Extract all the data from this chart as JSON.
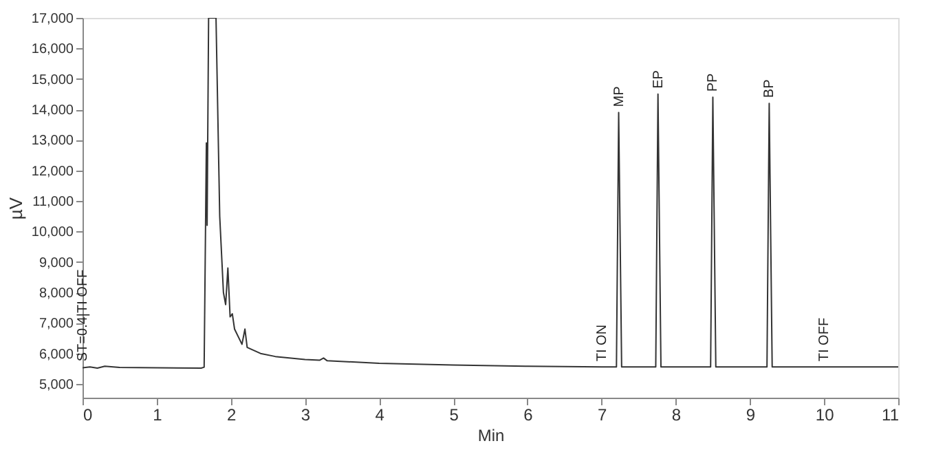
{
  "chart_data": {
    "type": "line",
    "xlabel": "Min",
    "ylabel": "µV",
    "xlim": [
      0,
      11
    ],
    "xticks": [
      0,
      1,
      2,
      3,
      4,
      5,
      6,
      7,
      8,
      9,
      10,
      11
    ],
    "ylim": [
      4550,
      17000
    ],
    "yticks": [
      {
        "value": 5000,
        "label": "5,000"
      },
      {
        "value": 6000,
        "label": "6,000"
      },
      {
        "value": 7000,
        "label": "7,000"
      },
      {
        "value": 8000,
        "label": "8,000"
      },
      {
        "value": 9000,
        "label": "9,000"
      },
      {
        "value": 10000,
        "label": "10,000"
      },
      {
        "value": 11000,
        "label": "11,000"
      },
      {
        "value": 12000,
        "label": "12,000"
      },
      {
        "value": 13000,
        "label": "13,000"
      },
      {
        "value": 14000,
        "label": "14,000"
      },
      {
        "value": 15000,
        "label": "15,000"
      },
      {
        "value": 16000,
        "label": "16,000"
      },
      {
        "value": 17000,
        "label": "17,000"
      }
    ],
    "grid": false,
    "marker": "none",
    "line_style": "solid",
    "series": [
      {
        "color": "#333333",
        "x": [
          0,
          0.1,
          0.2,
          0.3,
          0.5,
          1.0,
          1.6,
          1.64,
          1.67,
          1.68,
          1.7,
          1.8,
          1.85,
          1.9,
          1.93,
          1.96,
          1.99,
          2.02,
          2.05,
          2.15,
          2.19,
          2.22,
          2.4,
          2.6,
          3.0,
          3.2,
          3.25,
          3.3,
          4,
          5,
          6,
          7,
          7.2,
          7.23,
          7.27,
          7.73,
          7.76,
          7.8,
          8.47,
          8.5,
          8.54,
          9.23,
          9.26,
          9.3,
          10,
          11
        ],
        "values": [
          5530,
          5560,
          5520,
          5580,
          5540,
          5530,
          5520,
          5550,
          12900,
          10200,
          17000,
          17000,
          10500,
          8000,
          7600,
          8800,
          7200,
          7300,
          6800,
          6300,
          6800,
          6200,
          6000,
          5900,
          5800,
          5780,
          5850,
          5760,
          5680,
          5620,
          5580,
          5560,
          5560,
          13900,
          5560,
          5560,
          14500,
          5560,
          5560,
          14400,
          5560,
          5560,
          14200,
          5560,
          5560,
          5560
        ]
      }
    ],
    "annotations": [
      {
        "text": "MP",
        "x": 7.23,
        "y": 13900
      },
      {
        "text": "EP",
        "x": 7.76,
        "y": 14500
      },
      {
        "text": "PP",
        "x": 8.5,
        "y": 14400
      },
      {
        "text": "BP",
        "x": 9.26,
        "y": 14200
      },
      {
        "text": "ST=0.4|TI OFF",
        "x": 0,
        "y": 5560
      },
      {
        "text": "TI ON",
        "x": 7.0,
        "y": 5560
      },
      {
        "text": "TI OFF",
        "x": 10.0,
        "y": 5560
      }
    ]
  }
}
